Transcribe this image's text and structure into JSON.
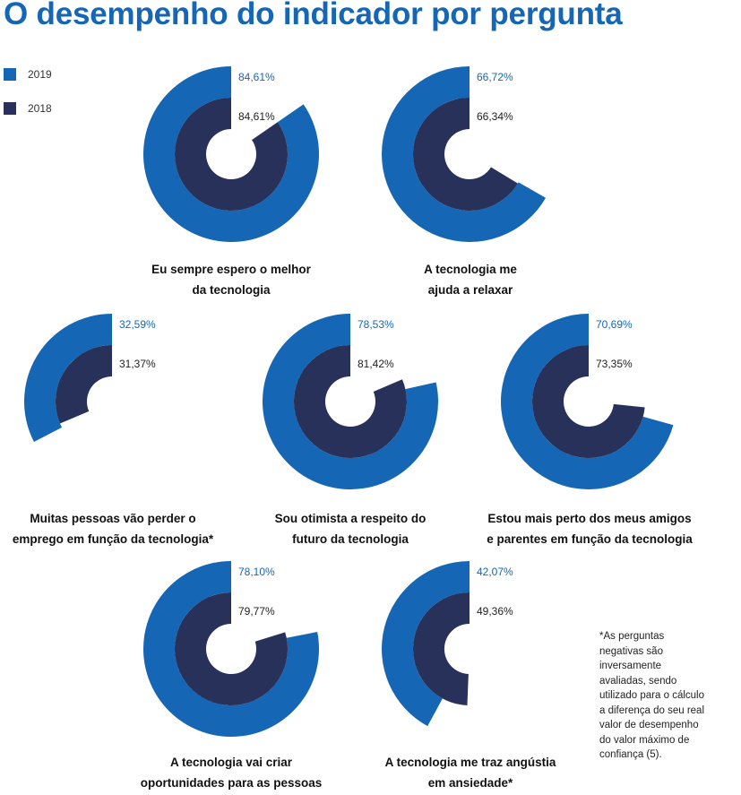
{
  "title": "O desempenho do indicador por pergunta",
  "legend": [
    {
      "label": "2019",
      "color": "#1566b4"
    },
    {
      "label": "2018",
      "color": "#283159"
    }
  ],
  "colors": {
    "series_2019": "#1566b4",
    "series_2018": "#283159",
    "label_2019": "#1566b4",
    "label_2018": "#222222"
  },
  "chart_data": {
    "type": "radial-bar",
    "series_names": [
      "2019",
      "2018"
    ],
    "charts": [
      {
        "caption": [
          "Eu sempre espero o melhor",
          "da tecnologia"
        ],
        "values": [
          84.61,
          84.61
        ],
        "labels": [
          "84,61%",
          "84,61%"
        ]
      },
      {
        "caption": [
          "A tecnologia me",
          "ajuda a relaxar"
        ],
        "values": [
          66.72,
          66.34
        ],
        "labels": [
          "66,72%",
          "66,34%"
        ]
      },
      {
        "caption": [
          "Muitas pessoas vão perder o",
          "emprego em função da tecnologia*"
        ],
        "values": [
          32.59,
          31.37
        ],
        "labels": [
          "32,59%",
          "31,37%"
        ]
      },
      {
        "caption": [
          "Sou otimista a respeito do",
          "futuro da tecnologia"
        ],
        "values": [
          78.53,
          81.42
        ],
        "labels": [
          "78,53%",
          "81,42%"
        ]
      },
      {
        "caption": [
          "Estou mais perto dos meus amigos",
          "e parentes em função da tecnologia"
        ],
        "values": [
          70.69,
          73.35
        ],
        "labels": [
          "70,69%",
          "73,35%"
        ]
      },
      {
        "caption": [
          "A tecnologia vai criar",
          "oportunidades para as pessoas"
        ],
        "values": [
          78.1,
          79.77
        ],
        "labels": [
          "78,10%",
          "79,77%"
        ]
      },
      {
        "caption": [
          "A tecnologia me traz angústia",
          "em ansiedade*"
        ],
        "values": [
          42.07,
          49.36
        ],
        "labels": [
          "42,07%",
          "49,36%"
        ]
      }
    ]
  },
  "footnote": "*As perguntas negativas são inversamente avaliadas, sendo utilizado para o cálculo a diferença do seu real valor de desempenho do valor máximo de confiança (5)."
}
